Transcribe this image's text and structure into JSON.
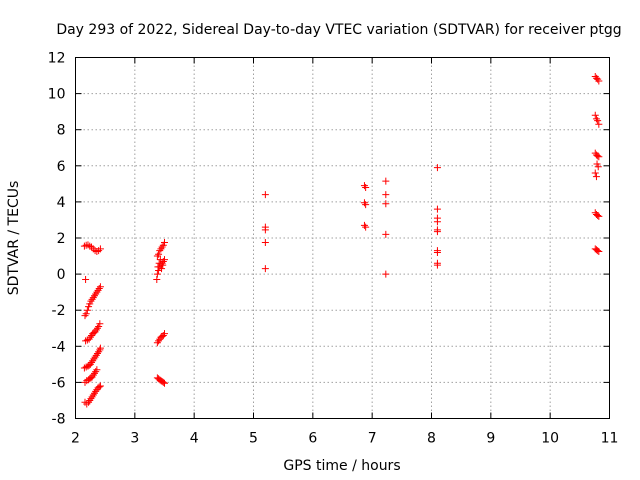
{
  "chart_data": {
    "type": "scatter",
    "title": "Day 293 of 2022, Sidereal Day-to-day VTEC variation (SDTVAR) for receiver ptgg",
    "xlabel": "GPS time / hours",
    "ylabel": "SDTVAR / TECUs",
    "xlim": [
      2,
      11
    ],
    "ylim": [
      -8,
      12
    ],
    "xticks": [
      "2",
      "3",
      "4",
      "5",
      "6",
      "7",
      "8",
      "9",
      "10",
      "11"
    ],
    "yticks": [
      "-8",
      "-6",
      "-4",
      "-2",
      "0",
      "2",
      "4",
      "6",
      "8",
      "10",
      "12"
    ],
    "grid": true,
    "marker": "+",
    "color": "#ff0000",
    "series": [
      {
        "name": "SDTVAR",
        "points": [
          [
            2.15,
            1.55
          ],
          [
            2.18,
            1.6
          ],
          [
            2.21,
            1.62
          ],
          [
            2.24,
            1.55
          ],
          [
            2.27,
            1.5
          ],
          [
            2.3,
            1.4
          ],
          [
            2.33,
            1.3
          ],
          [
            2.36,
            1.25
          ],
          [
            2.39,
            1.3
          ],
          [
            2.42,
            1.4
          ],
          [
            2.17,
            -0.3
          ],
          [
            2.16,
            -2.3
          ],
          [
            2.18,
            -2.2
          ],
          [
            2.2,
            -2.0
          ],
          [
            2.22,
            -1.8
          ],
          [
            2.24,
            -1.65
          ],
          [
            2.26,
            -1.5
          ],
          [
            2.28,
            -1.4
          ],
          [
            2.3,
            -1.3
          ],
          [
            2.32,
            -1.2
          ],
          [
            2.34,
            -1.1
          ],
          [
            2.36,
            -1.0
          ],
          [
            2.38,
            -0.9
          ],
          [
            2.4,
            -0.8
          ],
          [
            2.42,
            -0.7
          ],
          [
            2.17,
            -3.7
          ],
          [
            2.2,
            -3.65
          ],
          [
            2.23,
            -3.6
          ],
          [
            2.25,
            -3.5
          ],
          [
            2.27,
            -3.4
          ],
          [
            2.29,
            -3.3
          ],
          [
            2.31,
            -3.25
          ],
          [
            2.33,
            -3.2
          ],
          [
            2.35,
            -3.1
          ],
          [
            2.37,
            -3.0
          ],
          [
            2.39,
            -2.9
          ],
          [
            2.41,
            -2.75
          ],
          [
            2.15,
            -5.2
          ],
          [
            2.18,
            -5.15
          ],
          [
            2.21,
            -5.1
          ],
          [
            2.23,
            -5.05
          ],
          [
            2.25,
            -5.0
          ],
          [
            2.27,
            -4.9
          ],
          [
            2.29,
            -4.8
          ],
          [
            2.31,
            -4.7
          ],
          [
            2.33,
            -4.6
          ],
          [
            2.35,
            -4.5
          ],
          [
            2.37,
            -4.4
          ],
          [
            2.39,
            -4.3
          ],
          [
            2.41,
            -4.2
          ],
          [
            2.42,
            -4.1
          ],
          [
            2.16,
            -6.0
          ],
          [
            2.19,
            -5.9
          ],
          [
            2.22,
            -5.85
          ],
          [
            2.24,
            -5.8
          ],
          [
            2.26,
            -5.75
          ],
          [
            2.28,
            -5.7
          ],
          [
            2.3,
            -5.6
          ],
          [
            2.32,
            -5.5
          ],
          [
            2.34,
            -5.4
          ],
          [
            2.36,
            -5.3
          ],
          [
            2.16,
            -7.1
          ],
          [
            2.19,
            -7.2
          ],
          [
            2.22,
            -7.1
          ],
          [
            2.24,
            -7.0
          ],
          [
            2.26,
            -6.9
          ],
          [
            2.28,
            -6.8
          ],
          [
            2.3,
            -6.7
          ],
          [
            2.32,
            -6.6
          ],
          [
            2.34,
            -6.5
          ],
          [
            2.36,
            -6.4
          ],
          [
            2.38,
            -6.3
          ],
          [
            2.4,
            -6.25
          ],
          [
            2.42,
            -6.2
          ],
          [
            3.38,
            0.0
          ],
          [
            3.4,
            0.2
          ],
          [
            3.42,
            0.4
          ],
          [
            3.44,
            0.5
          ],
          [
            3.46,
            0.6
          ],
          [
            3.48,
            0.7
          ],
          [
            3.5,
            0.8
          ],
          [
            3.39,
            0.4
          ],
          [
            3.41,
            0.6
          ],
          [
            3.43,
            0.8
          ],
          [
            3.45,
            0.3
          ],
          [
            3.47,
            0.5
          ],
          [
            3.37,
            -0.3
          ],
          [
            3.38,
            1.0
          ],
          [
            3.4,
            1.1
          ],
          [
            3.42,
            1.3
          ],
          [
            3.44,
            1.4
          ],
          [
            3.46,
            1.5
          ],
          [
            3.48,
            1.6
          ],
          [
            3.5,
            1.75
          ],
          [
            3.38,
            -3.8
          ],
          [
            3.4,
            -3.7
          ],
          [
            3.42,
            -3.6
          ],
          [
            3.44,
            -3.5
          ],
          [
            3.46,
            -3.45
          ],
          [
            3.48,
            -3.4
          ],
          [
            3.5,
            -3.3
          ],
          [
            3.38,
            -5.75
          ],
          [
            3.4,
            -5.8
          ],
          [
            3.42,
            -5.85
          ],
          [
            3.44,
            -5.9
          ],
          [
            3.46,
            -5.95
          ],
          [
            3.48,
            -6.0
          ],
          [
            3.5,
            -6.05
          ],
          [
            5.2,
            4.4
          ],
          [
            5.2,
            2.6
          ],
          [
            5.2,
            2.45
          ],
          [
            5.2,
            1.75
          ],
          [
            5.2,
            0.3
          ],
          [
            6.87,
            4.9
          ],
          [
            6.89,
            4.8
          ],
          [
            6.87,
            3.95
          ],
          [
            6.89,
            3.85
          ],
          [
            6.87,
            2.7
          ],
          [
            6.89,
            2.6
          ],
          [
            7.23,
            5.15
          ],
          [
            7.23,
            4.4
          ],
          [
            7.23,
            3.9
          ],
          [
            7.23,
            2.2
          ],
          [
            7.23,
            0.0
          ],
          [
            8.1,
            5.9
          ],
          [
            8.1,
            3.6
          ],
          [
            8.1,
            3.1
          ],
          [
            8.1,
            2.9
          ],
          [
            8.1,
            2.45
          ],
          [
            8.1,
            2.35
          ],
          [
            8.1,
            1.3
          ],
          [
            8.1,
            1.2
          ],
          [
            8.1,
            0.6
          ],
          [
            8.1,
            0.5
          ],
          [
            10.76,
            10.95
          ],
          [
            10.78,
            10.85
          ],
          [
            10.8,
            10.8
          ],
          [
            10.82,
            10.7
          ],
          [
            10.76,
            8.8
          ],
          [
            10.78,
            8.6
          ],
          [
            10.8,
            8.5
          ],
          [
            10.82,
            8.3
          ],
          [
            10.76,
            6.7
          ],
          [
            10.78,
            6.6
          ],
          [
            10.8,
            6.55
          ],
          [
            10.82,
            6.5
          ],
          [
            10.79,
            6.1
          ],
          [
            10.81,
            5.95
          ],
          [
            10.76,
            5.6
          ],
          [
            10.78,
            5.4
          ],
          [
            10.76,
            3.4
          ],
          [
            10.78,
            3.3
          ],
          [
            10.8,
            3.25
          ],
          [
            10.82,
            3.2
          ],
          [
            10.76,
            1.4
          ],
          [
            10.78,
            1.35
          ],
          [
            10.8,
            1.3
          ],
          [
            10.82,
            1.25
          ]
        ]
      }
    ]
  }
}
